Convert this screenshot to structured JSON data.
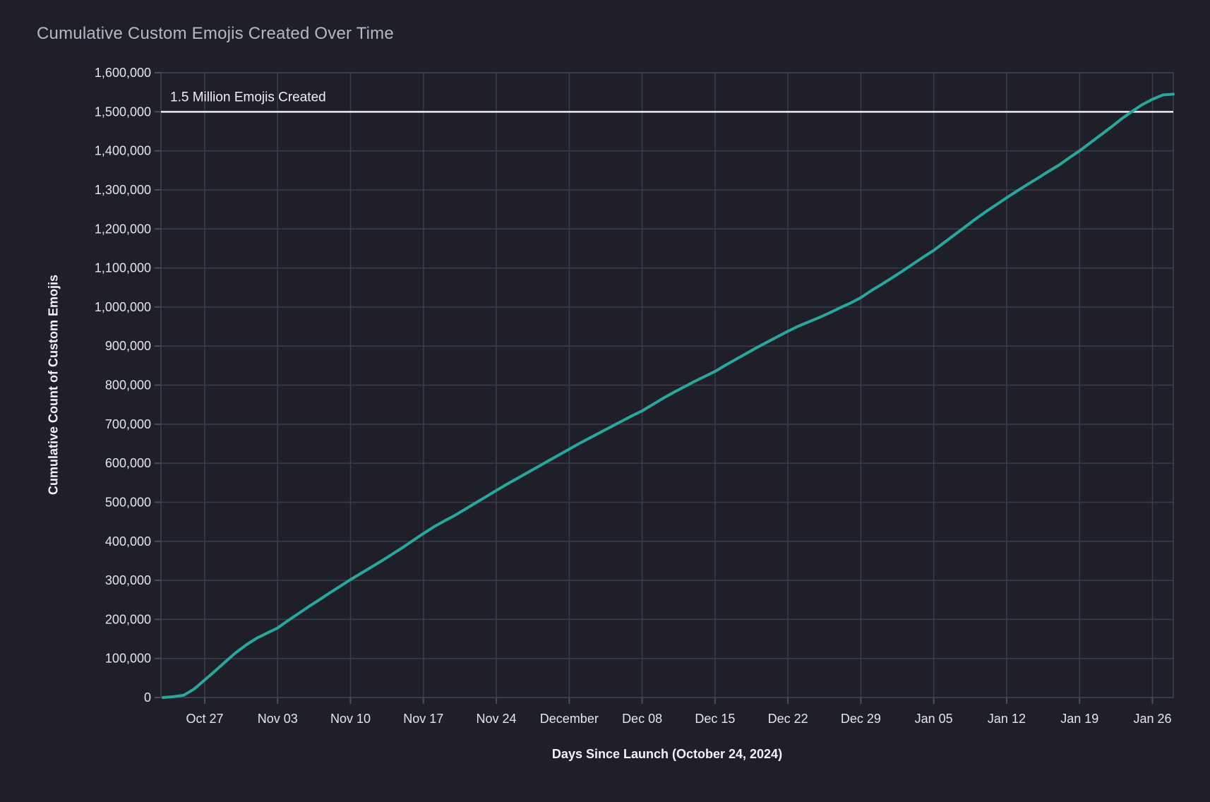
{
  "colors": {
    "background": "#1e1f29",
    "grid": "#3a3c4b",
    "axis_border": "#3e4050",
    "tick_mark": "#4a4d5c",
    "line": "#2aa69a",
    "title_text": "#b3b8c3",
    "tick_text": "#e4e6ec",
    "axis_title_text": "#f2f3f6",
    "reference_line": "#eef0f4"
  },
  "chart_data": {
    "type": "line",
    "title": "Cumulative Custom Emojis Created Over Time",
    "xlabel": "Days Since Launch (October 24, 2024)",
    "ylabel": "Cumulative Count of Custom Emojis",
    "grid": true,
    "legend": "none",
    "x_axis": {
      "start_date": "October 24, 2024",
      "domain_days": [
        -1.2,
        96
      ],
      "ticks": [
        {
          "day": 3,
          "label": "Oct 27"
        },
        {
          "day": 10,
          "label": "Nov 03"
        },
        {
          "day": 17,
          "label": "Nov 10"
        },
        {
          "day": 24,
          "label": "Nov 17"
        },
        {
          "day": 31,
          "label": "Nov 24"
        },
        {
          "day": 38,
          "label": "December"
        },
        {
          "day": 45,
          "label": "Dec 08"
        },
        {
          "day": 52,
          "label": "Dec 15"
        },
        {
          "day": 59,
          "label": "Dec 22"
        },
        {
          "day": 66,
          "label": "Dec 29"
        },
        {
          "day": 73,
          "label": "Jan 05"
        },
        {
          "day": 80,
          "label": "Jan 12"
        },
        {
          "day": 87,
          "label": "Jan 19"
        },
        {
          "day": 94,
          "label": "Jan 26"
        }
      ]
    },
    "y_axis": {
      "min": 0,
      "max": 1600000,
      "tick_step": 100000,
      "tick_labels": [
        "0",
        "100,000",
        "200,000",
        "300,000",
        "400,000",
        "500,000",
        "600,000",
        "700,000",
        "800,000",
        "900,000",
        "1,000,000",
        "1,100,000",
        "1,200,000",
        "1,300,000",
        "1,400,000",
        "1,500,000",
        "1,600,000"
      ]
    },
    "reference_line": {
      "value": 1500000,
      "label": "1.5 Million Emojis Created"
    },
    "series": [
      {
        "name": "Cumulative Custom Emojis",
        "color": "#2aa69a",
        "points": [
          [
            "Oct 23",
            -1,
            0
          ],
          [
            "Oct 24",
            0,
            2000
          ],
          [
            "Oct 25",
            1,
            6000
          ],
          [
            "Oct 26",
            2,
            22000
          ],
          [
            "Oct 27",
            3,
            45000
          ],
          [
            "Oct 28",
            4,
            68000
          ],
          [
            "Oct 29",
            5,
            92000
          ],
          [
            "Oct 30",
            6,
            115000
          ],
          [
            "Oct 31",
            7,
            135000
          ],
          [
            "Nov 01",
            8,
            152000
          ],
          [
            "Nov 02",
            9,
            165000
          ],
          [
            "Nov 03",
            10,
            178000
          ],
          [
            "Nov 04",
            11,
            197000
          ],
          [
            "Nov 05",
            12,
            215000
          ],
          [
            "Nov 06",
            13,
            233000
          ],
          [
            "Nov 07",
            14,
            250000
          ],
          [
            "Nov 08",
            15,
            268000
          ],
          [
            "Nov 09",
            16,
            285000
          ],
          [
            "Nov 10",
            17,
            302000
          ],
          [
            "Nov 11",
            18,
            318000
          ],
          [
            "Nov 12",
            19,
            334000
          ],
          [
            "Nov 13",
            20,
            350000
          ],
          [
            "Nov 14",
            21,
            367000
          ],
          [
            "Nov 15",
            22,
            384000
          ],
          [
            "Nov 16",
            23,
            402000
          ],
          [
            "Nov 17",
            24,
            420000
          ],
          [
            "Nov 18",
            25,
            437000
          ],
          [
            "Nov 19",
            26,
            452000
          ],
          [
            "Nov 20",
            27,
            466000
          ],
          [
            "Nov 21",
            28,
            482000
          ],
          [
            "Nov 22",
            29,
            498000
          ],
          [
            "Nov 23",
            30,
            514000
          ],
          [
            "Nov 24",
            31,
            530000
          ],
          [
            "Nov 25",
            32,
            546000
          ],
          [
            "Nov 26",
            33,
            561000
          ],
          [
            "Nov 27",
            34,
            576000
          ],
          [
            "Nov 28",
            35,
            591000
          ],
          [
            "Nov 29",
            36,
            606000
          ],
          [
            "Nov 30",
            37,
            621000
          ],
          [
            "Dec 01",
            38,
            636000
          ],
          [
            "Dec 02",
            39,
            651000
          ],
          [
            "Dec 03",
            40,
            665000
          ],
          [
            "Dec 04",
            41,
            679000
          ],
          [
            "Dec 05",
            42,
            693000
          ],
          [
            "Dec 06",
            43,
            707000
          ],
          [
            "Dec 07",
            44,
            721000
          ],
          [
            "Dec 08",
            45,
            734000
          ],
          [
            "Dec 09",
            46,
            750000
          ],
          [
            "Dec 10",
            47,
            766000
          ],
          [
            "Dec 11",
            48,
            781000
          ],
          [
            "Dec 12",
            49,
            795000
          ],
          [
            "Dec 13",
            50,
            809000
          ],
          [
            "Dec 14",
            51,
            822000
          ],
          [
            "Dec 15",
            52,
            835000
          ],
          [
            "Dec 16",
            53,
            851000
          ],
          [
            "Dec 17",
            54,
            866000
          ],
          [
            "Dec 18",
            55,
            881000
          ],
          [
            "Dec 19",
            56,
            896000
          ],
          [
            "Dec 20",
            57,
            910000
          ],
          [
            "Dec 21",
            58,
            924000
          ],
          [
            "Dec 22",
            59,
            938000
          ],
          [
            "Dec 23",
            60,
            951000
          ],
          [
            "Dec 24",
            61,
            962000
          ],
          [
            "Dec 25",
            62,
            973000
          ],
          [
            "Dec 26",
            63,
            985000
          ],
          [
            "Dec 27",
            64,
            998000
          ],
          [
            "Dec 28",
            65,
            1010000
          ],
          [
            "Dec 29",
            66,
            1024000
          ],
          [
            "Dec 30",
            67,
            1042000
          ],
          [
            "Dec 31",
            68,
            1058000
          ],
          [
            "Jan 01",
            69,
            1075000
          ],
          [
            "Jan 02",
            70,
            1092000
          ],
          [
            "Jan 03",
            71,
            1110000
          ],
          [
            "Jan 04",
            72,
            1128000
          ],
          [
            "Jan 05",
            73,
            1145000
          ],
          [
            "Jan 06",
            74,
            1165000
          ],
          [
            "Jan 07",
            75,
            1185000
          ],
          [
            "Jan 08",
            76,
            1205000
          ],
          [
            "Jan 09",
            77,
            1225000
          ],
          [
            "Jan 10",
            78,
            1244000
          ],
          [
            "Jan 11",
            79,
            1262000
          ],
          [
            "Jan 12",
            80,
            1280000
          ],
          [
            "Jan 13",
            81,
            1297000
          ],
          [
            "Jan 14",
            82,
            1314000
          ],
          [
            "Jan 15",
            83,
            1330000
          ],
          [
            "Jan 16",
            84,
            1347000
          ],
          [
            "Jan 17",
            85,
            1363000
          ],
          [
            "Jan 18",
            86,
            1382000
          ],
          [
            "Jan 19",
            87,
            1400000
          ],
          [
            "Jan 20",
            88,
            1420000
          ],
          [
            "Jan 21",
            89,
            1440000
          ],
          [
            "Jan 22",
            90,
            1460000
          ],
          [
            "Jan 23",
            91,
            1481000
          ],
          [
            "Jan 24",
            92,
            1500000
          ],
          [
            "Jan 25",
            93,
            1518000
          ],
          [
            "Jan 26",
            94,
            1532000
          ],
          [
            "Jan 27",
            95,
            1543000
          ],
          [
            "Jan 28",
            96,
            1545000
          ]
        ]
      }
    ]
  }
}
